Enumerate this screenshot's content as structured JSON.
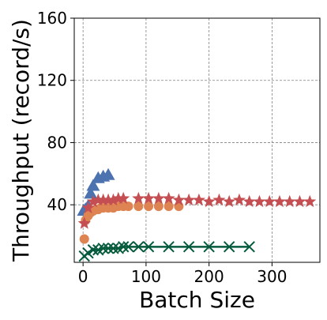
{
  "chart_data": {
    "type": "scatter",
    "title": "",
    "xlabel": "Batch Size",
    "ylabel": "Throughput (record/s)",
    "xlim": [
      -14,
      376
    ],
    "ylim": [
      3,
      160
    ],
    "xticks": [
      0,
      100,
      200,
      300
    ],
    "yticks": [
      40,
      80,
      120,
      160
    ],
    "grid": true,
    "legend": "none",
    "series": [
      {
        "marker": "triangle",
        "color": "#4C72B0",
        "x": [
          1,
          4,
          8,
          12,
          16,
          24,
          32,
          40
        ],
        "y": [
          36,
          37,
          39,
          47,
          52,
          57,
          58,
          59
        ]
      },
      {
        "marker": "circle",
        "color": "#DD8452",
        "x": [
          2,
          4,
          8,
          12,
          16,
          20,
          24,
          28,
          32,
          40,
          48,
          56,
          64,
          72,
          88,
          104,
          120,
          136,
          152
        ],
        "y": [
          18,
          30,
          33,
          35,
          36,
          37,
          37,
          38,
          38,
          38,
          38,
          39,
          39,
          39,
          39,
          39,
          39,
          39,
          39
        ]
      },
      {
        "marker": "star",
        "color": "#C44E52",
        "x": [
          2,
          8,
          16,
          24,
          32,
          40,
          48,
          56,
          64,
          88,
          104,
          120,
          136,
          152,
          168,
          184,
          200,
          216,
          232,
          248,
          264,
          280,
          296,
          312,
          328,
          344,
          360
        ],
        "y": [
          28,
          38,
          42,
          43,
          43,
          43,
          43,
          44,
          44,
          44,
          44,
          44,
          44,
          43,
          43,
          43,
          42,
          43,
          42,
          43,
          42,
          42,
          42,
          42,
          42,
          42,
          42
        ]
      },
      {
        "marker": "x",
        "color": "#055A3C",
        "x": [
          2,
          8,
          16,
          24,
          32,
          40,
          48,
          56,
          64,
          72,
          88,
          104,
          136,
          168,
          200,
          232,
          264
        ],
        "y": [
          7,
          9,
          11,
          11,
          12,
          12,
          12,
          12,
          13,
          13,
          13,
          13,
          13,
          13,
          13,
          13,
          13
        ]
      }
    ]
  }
}
